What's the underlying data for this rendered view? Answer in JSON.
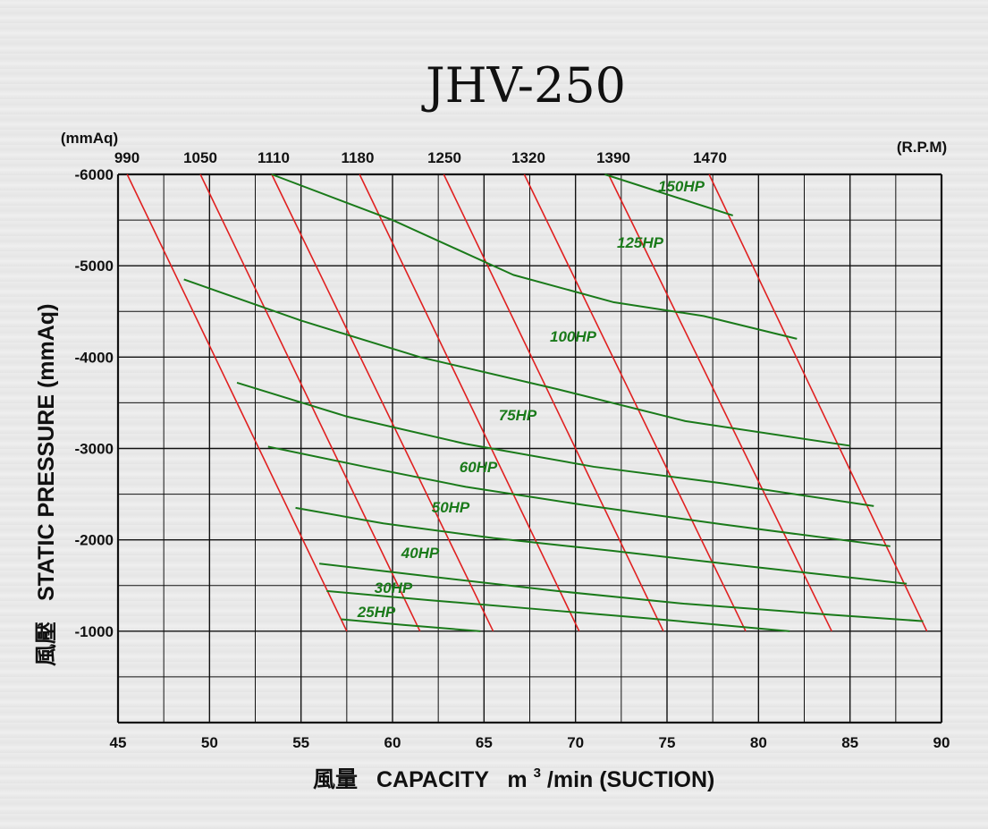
{
  "chart_data": {
    "type": "line",
    "title": "JHV-250",
    "xlabel_cjk": "風量",
    "xlabel": "CAPACITY",
    "xlabel_unit_base": "m",
    "xlabel_unit_sup": "3",
    "xlabel_unit_rest": "/min (SUCTION)",
    "ylabel_cjk": "風壓",
    "ylabel": "STATIC  PRESSURE  (mmAq)",
    "y_unit_top": "(mmAq)",
    "rpm_unit": "(R.P.M)",
    "xlim": [
      45,
      90
    ],
    "ylim": [
      0,
      -6000
    ],
    "x_ticks": [
      "45",
      "50",
      "55",
      "60",
      "65",
      "70",
      "75",
      "80",
      "85",
      "90"
    ],
    "y_ticks": [
      "-6000",
      "-5000",
      "-4000",
      "-3000",
      "-2000",
      "-1000"
    ],
    "grid": true,
    "colors": {
      "rpm_line": "#e02020",
      "hp_line": "#1a7a1a",
      "grid": "#111111"
    },
    "rpm_labels": [
      "990",
      "1050",
      "1110",
      "1180",
      "1250",
      "1320",
      "1390",
      "1470"
    ],
    "rpm_series": [
      {
        "name": "990",
        "points": [
          [
            45.5,
            -6000
          ],
          [
            57.5,
            -1000
          ]
        ]
      },
      {
        "name": "1050",
        "points": [
          [
            49.5,
            -6000
          ],
          [
            61.5,
            -1000
          ]
        ]
      },
      {
        "name": "1110",
        "points": [
          [
            53.4,
            -6000
          ],
          [
            65.5,
            -1000
          ]
        ]
      },
      {
        "name": "1180",
        "points": [
          [
            58.2,
            -6000
          ],
          [
            70.2,
            -1000
          ]
        ]
      },
      {
        "name": "1250",
        "points": [
          [
            62.8,
            -6000
          ],
          [
            74.8,
            -1000
          ]
        ]
      },
      {
        "name": "1320",
        "points": [
          [
            67.2,
            -6000
          ],
          [
            79.3,
            -1000
          ]
        ]
      },
      {
        "name": "1390",
        "points": [
          [
            71.8,
            -6000
          ],
          [
            84.0,
            -1000
          ]
        ]
      },
      {
        "name": "1470",
        "points": [
          [
            77.3,
            -6000
          ],
          [
            89.2,
            -1000
          ]
        ]
      }
    ],
    "hp_series": [
      {
        "name": "150HP",
        "points": [
          [
            71.6,
            -6000
          ],
          [
            78.6,
            -5550
          ]
        ]
      },
      {
        "name": "125HP",
        "points": [
          [
            53.4,
            -6000
          ],
          [
            60.0,
            -5500
          ],
          [
            66.6,
            -4900
          ],
          [
            72.1,
            -4600
          ],
          [
            77.0,
            -4450
          ],
          [
            82.1,
            -4200
          ]
        ]
      },
      {
        "name": "100HP",
        "points": [
          [
            48.6,
            -4850
          ],
          [
            55.0,
            -4400
          ],
          [
            61.5,
            -4000
          ],
          [
            69.0,
            -3650
          ],
          [
            76.0,
            -3300
          ],
          [
            85.0,
            -3030
          ]
        ]
      },
      {
        "name": "75HP",
        "points": [
          [
            51.5,
            -3720
          ],
          [
            57.5,
            -3350
          ],
          [
            64.0,
            -3050
          ],
          [
            71.0,
            -2800
          ],
          [
            78.0,
            -2620
          ],
          [
            86.3,
            -2370
          ]
        ]
      },
      {
        "name": "60HP",
        "points": [
          [
            53.2,
            -3020
          ],
          [
            58.5,
            -2800
          ],
          [
            64.0,
            -2580
          ],
          [
            70.5,
            -2380
          ],
          [
            78.0,
            -2170
          ],
          [
            87.2,
            -1930
          ]
        ]
      },
      {
        "name": "50HP",
        "points": [
          [
            54.7,
            -2350
          ],
          [
            59.5,
            -2180
          ],
          [
            65.5,
            -2020
          ],
          [
            72.0,
            -1880
          ],
          [
            79.0,
            -1720
          ],
          [
            88.1,
            -1520
          ]
        ]
      },
      {
        "name": "40HP",
        "points": [
          [
            56.0,
            -1740
          ],
          [
            62.0,
            -1600
          ],
          [
            69.0,
            -1440
          ],
          [
            76.0,
            -1300
          ],
          [
            84.0,
            -1180
          ],
          [
            89.0,
            -1110
          ]
        ]
      },
      {
        "name": "30HP",
        "points": [
          [
            56.4,
            -1440
          ],
          [
            62.0,
            -1340
          ],
          [
            68.0,
            -1240
          ],
          [
            74.0,
            -1140
          ],
          [
            81.7,
            -1000
          ]
        ]
      },
      {
        "name": "25HP",
        "points": [
          [
            57.2,
            -1130
          ],
          [
            60.5,
            -1070
          ],
          [
            64.8,
            -1000
          ]
        ]
      }
    ]
  }
}
